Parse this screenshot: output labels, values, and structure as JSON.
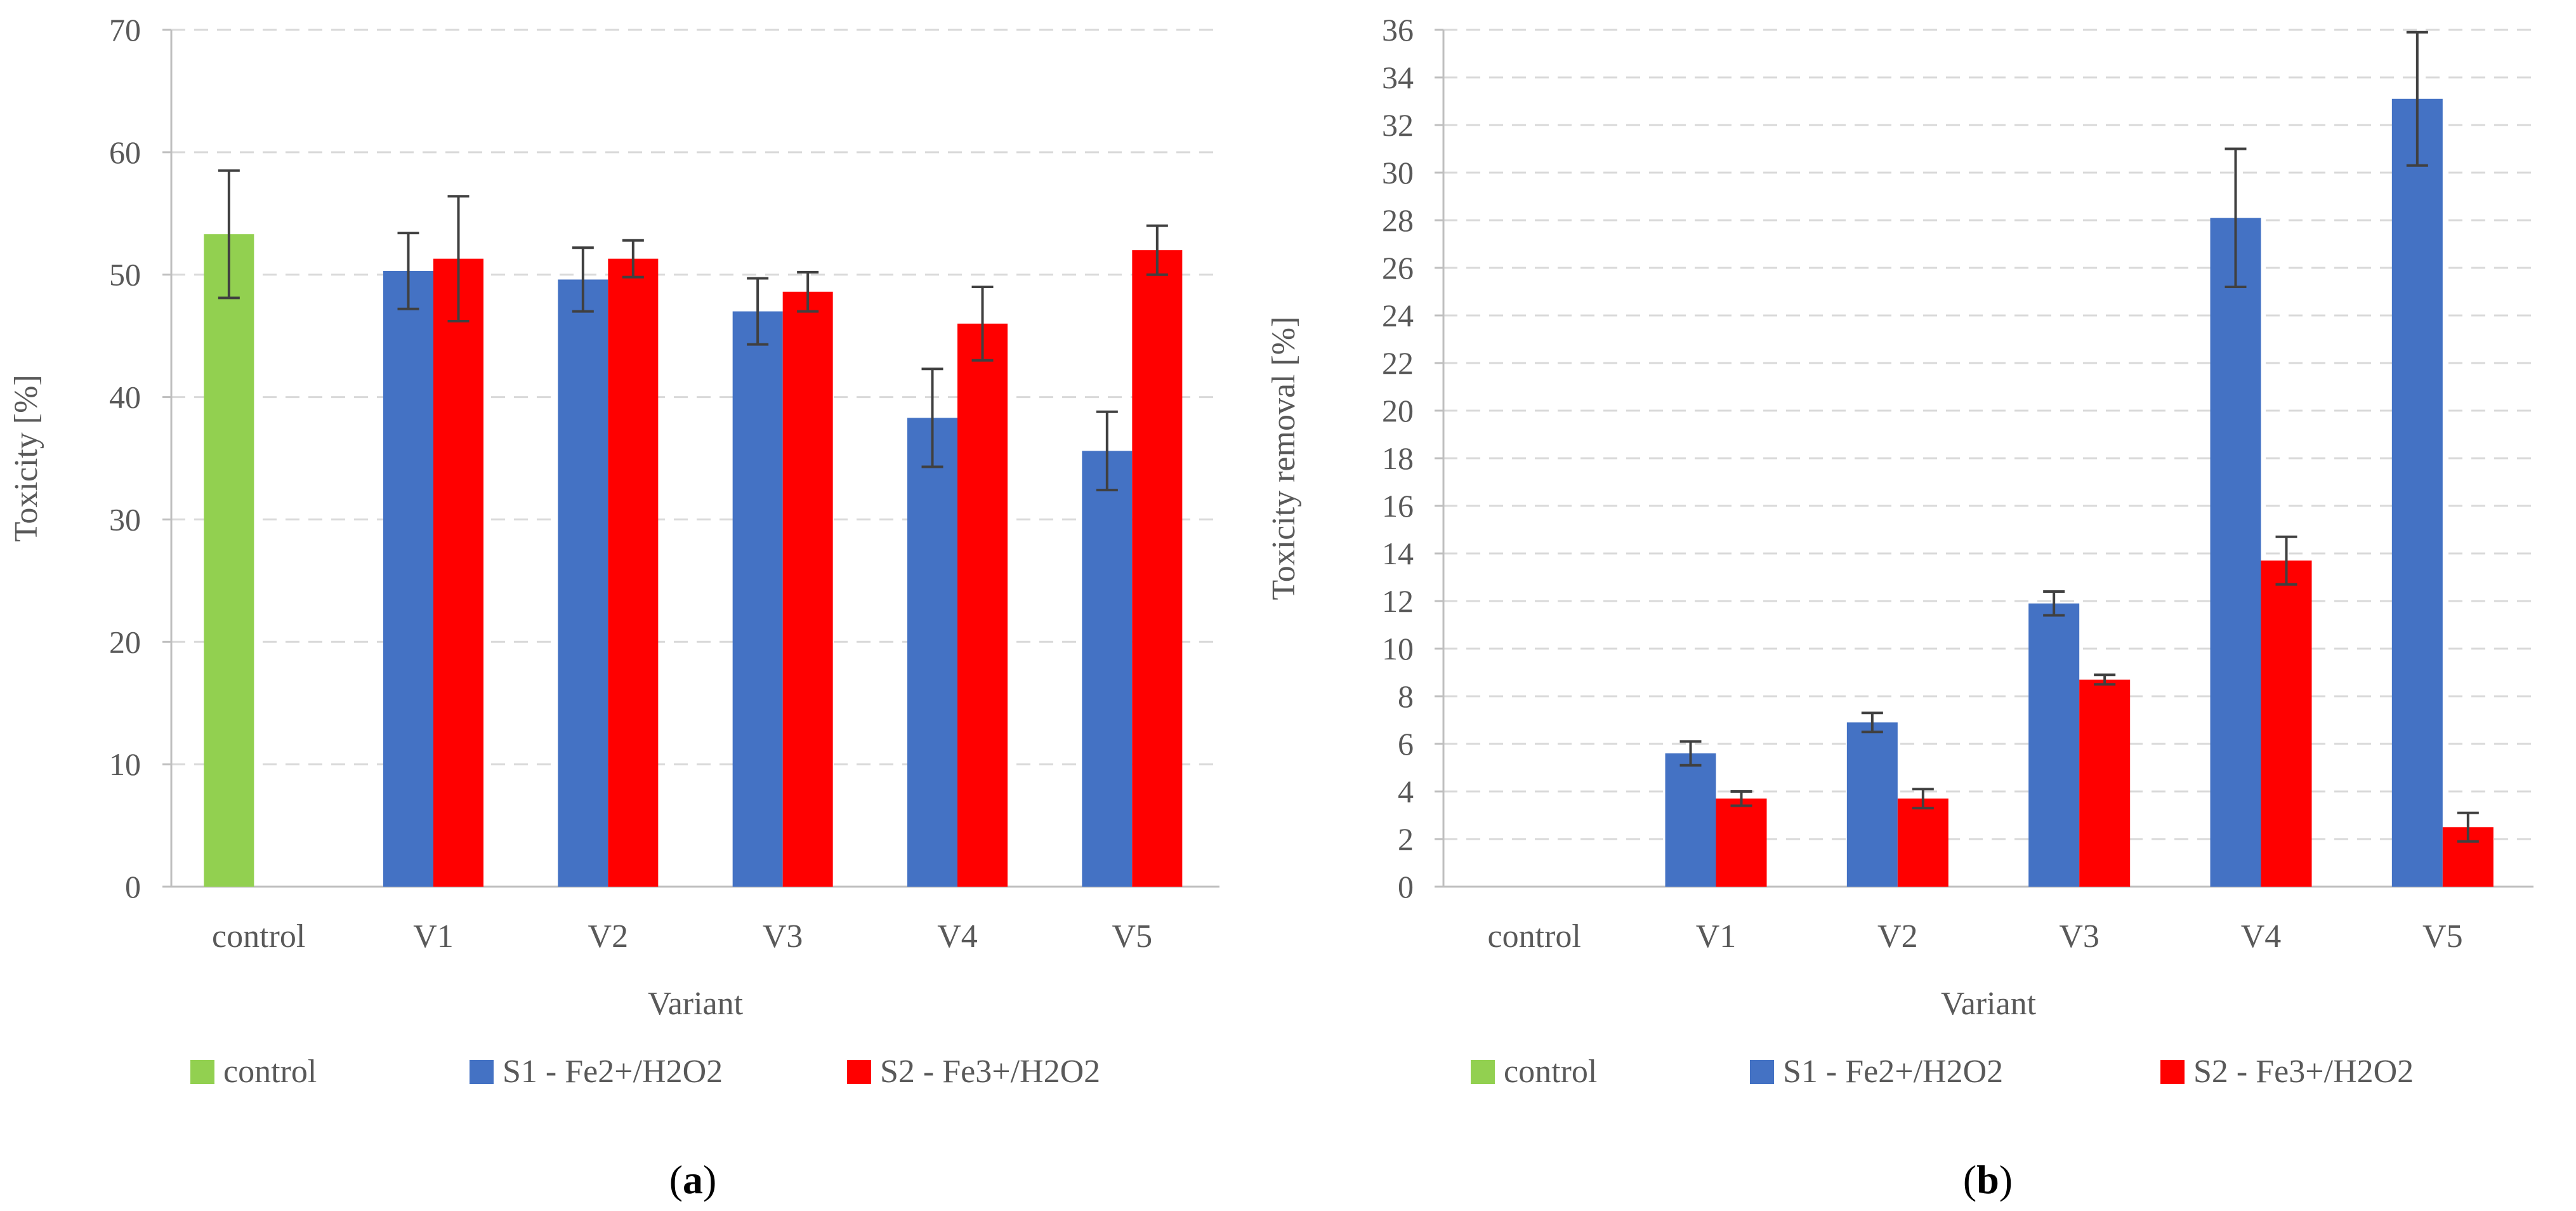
{
  "colors": {
    "control": "#92D050",
    "S1": "#4472C4",
    "S2": "#FF0000",
    "axis": "#BFBFBF",
    "grid": "#D9D9D9",
    "errorbar": "#404040",
    "text": "#595959"
  },
  "chart_data": [
    {
      "id": "a",
      "type": "bar",
      "panel_label": "a",
      "title": "",
      "xlabel": "Variant",
      "ylabel": "Toxicity [%]",
      "categories": [
        "control",
        "V1",
        "V2",
        "V3",
        "V4",
        "V5"
      ],
      "ylim": [
        0,
        70
      ],
      "ytick_step": 10,
      "grid": true,
      "legend_position": "bottom",
      "series": [
        {
          "name": "control",
          "color": "#92D050",
          "values": [
            53.3,
            null,
            null,
            null,
            null,
            null
          ],
          "errors": [
            5.2,
            null,
            null,
            null,
            null,
            null
          ]
        },
        {
          "name": "S1 - Fe2+/H2O2",
          "color": "#4472C4",
          "values": [
            null,
            50.3,
            49.6,
            47.0,
            38.3,
            35.6
          ],
          "errors": [
            null,
            3.1,
            2.6,
            2.7,
            4.0,
            3.2
          ]
        },
        {
          "name": "S2 - Fe3+/H2O2",
          "color": "#FF0000",
          "values": [
            null,
            51.3,
            51.3,
            48.6,
            46.0,
            52.0
          ],
          "errors": [
            null,
            5.1,
            1.5,
            1.6,
            3.0,
            2.0
          ]
        }
      ]
    },
    {
      "id": "b",
      "type": "bar",
      "panel_label": "b",
      "title": "",
      "xlabel": "Variant",
      "ylabel": "Toxicity removal [%]",
      "categories": [
        "control",
        "V1",
        "V2",
        "V3",
        "V4",
        "V5"
      ],
      "ylim": [
        0,
        36
      ],
      "ytick_step": 2,
      "grid": true,
      "legend_position": "bottom",
      "series": [
        {
          "name": "control",
          "color": "#92D050",
          "values": [
            0,
            null,
            null,
            null,
            null,
            null
          ],
          "errors": [
            null,
            null,
            null,
            null,
            null,
            null
          ]
        },
        {
          "name": "S1 - Fe2+/H2O2",
          "color": "#4472C4",
          "values": [
            null,
            5.6,
            6.9,
            11.9,
            28.1,
            33.1
          ],
          "errors": [
            null,
            0.5,
            0.4,
            0.5,
            2.9,
            2.8
          ]
        },
        {
          "name": "S2 - Fe3+/H2O2",
          "color": "#FF0000",
          "values": [
            null,
            3.7,
            3.7,
            8.7,
            13.7,
            2.5
          ],
          "errors": [
            null,
            0.3,
            0.4,
            0.2,
            1.0,
            0.6
          ]
        }
      ]
    }
  ]
}
